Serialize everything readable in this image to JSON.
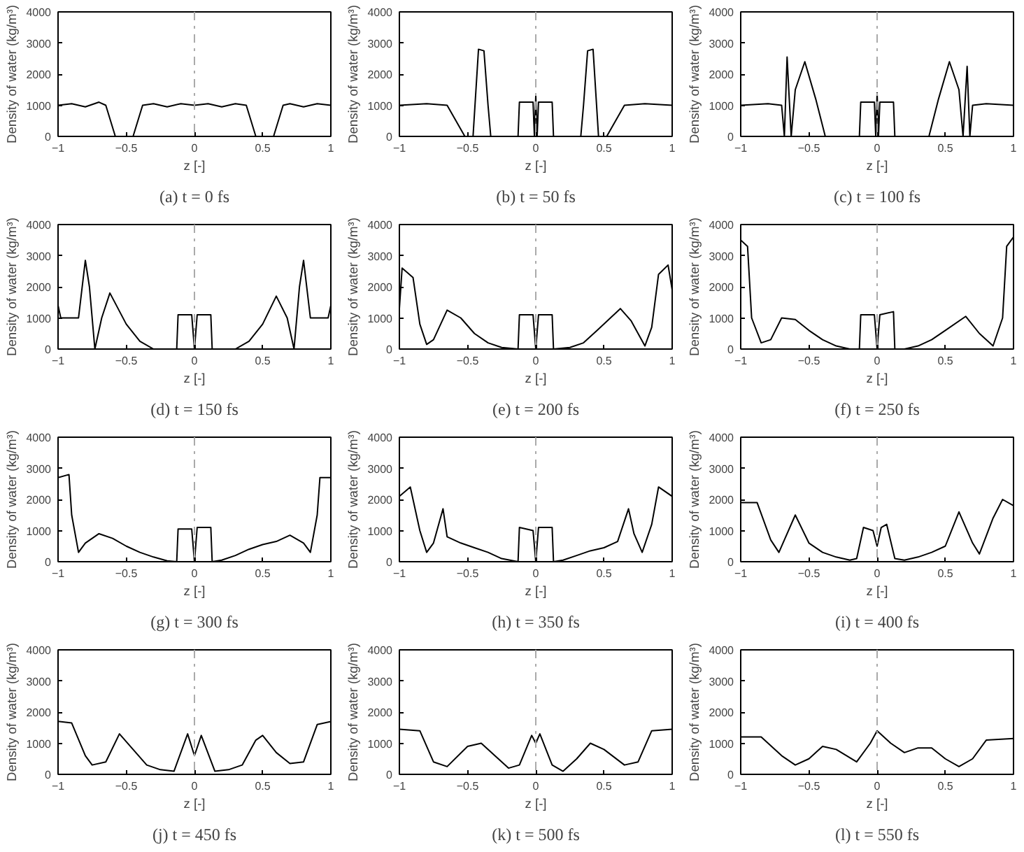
{
  "chart_data": [
    {
      "type": "line",
      "title": "(a) t = 0 fs",
      "xlabel": "z [-]",
      "ylabel": "Density of water (kg/m³)",
      "xlim": [
        -1,
        1
      ],
      "ylim": [
        0,
        4000
      ],
      "xticks": [
        -1,
        -0.5,
        0,
        0.5,
        1
      ],
      "yticks": [
        0,
        1000,
        2000,
        3000,
        4000
      ],
      "grid": false,
      "marker": "none",
      "ref_lines": [
        {
          "axis": "x",
          "value": 0,
          "color": "#aaaaaa"
        }
      ],
      "series": [
        {
          "color": "#000000",
          "x": [
            -1,
            -0.9,
            -0.8,
            -0.7,
            -0.65,
            -0.58,
            -0.5,
            -0.45,
            -0.38,
            -0.3,
            -0.2,
            -0.1,
            0,
            0.1,
            0.2,
            0.3,
            0.38,
            0.45,
            0.5,
            0.58,
            0.65,
            0.7,
            0.8,
            0.9,
            1
          ],
          "values": [
            1000,
            1050,
            950,
            1100,
            1000,
            0,
            0,
            0,
            1000,
            1050,
            950,
            1050,
            1000,
            1050,
            950,
            1050,
            1000,
            0,
            0,
            0,
            1000,
            1050,
            950,
            1050,
            1000
          ]
        }
      ]
    },
    {
      "type": "line",
      "title": "(b) t = 50 fs",
      "xlabel": "z [-]",
      "ylabel": "Density of water (kg/m³)",
      "xlim": [
        -1,
        1
      ],
      "ylim": [
        0,
        4000
      ],
      "xticks": [
        -1,
        -0.5,
        0,
        0.5,
        1
      ],
      "yticks": [
        0,
        1000,
        2000,
        3000,
        4000
      ],
      "grid": false,
      "marker": "none",
      "ref_lines": [
        {
          "axis": "x",
          "value": 0,
          "color": "#aaaaaa"
        }
      ],
      "series": [
        {
          "color": "#000000",
          "x": [
            -1,
            -0.8,
            -0.65,
            -0.52,
            -0.46,
            -0.42,
            -0.38,
            -0.35,
            -0.33,
            -0.13,
            -0.12,
            -0.02,
            -0.01,
            0,
            0.01,
            0.02,
            0.12,
            0.13,
            0.33,
            0.35,
            0.38,
            0.42,
            0.46,
            0.52,
            0.65,
            0.8,
            1
          ],
          "values": [
            1000,
            1050,
            1000,
            0,
            0,
            2800,
            2750,
            1000,
            0,
            0,
            1100,
            1100,
            0,
            1300,
            0,
            1100,
            1100,
            0,
            0,
            1000,
            2750,
            2800,
            0,
            0,
            1000,
            1050,
            1000
          ]
        }
      ]
    },
    {
      "type": "line",
      "title": "(c) t = 100 fs",
      "xlabel": "z [-]",
      "ylabel": "Density of water (kg/m³)",
      "xlim": [
        -1,
        1
      ],
      "ylim": [
        0,
        4000
      ],
      "xticks": [
        -1,
        -0.5,
        0,
        0.5,
        1
      ],
      "yticks": [
        0,
        1000,
        2000,
        3000,
        4000
      ],
      "grid": false,
      "marker": "none",
      "ref_lines": [
        {
          "axis": "x",
          "value": 0,
          "color": "#aaaaaa"
        }
      ],
      "series": [
        {
          "color": "#000000",
          "x": [
            -1,
            -0.8,
            -0.7,
            -0.68,
            -0.66,
            -0.63,
            -0.6,
            -0.53,
            -0.45,
            -0.38,
            -0.13,
            -0.12,
            -0.02,
            -0.01,
            0,
            0.01,
            0.02,
            0.12,
            0.13,
            0.38,
            0.45,
            0.53,
            0.6,
            0.63,
            0.66,
            0.68,
            0.7,
            0.8,
            1
          ],
          "values": [
            1000,
            1050,
            1000,
            0,
            2550,
            0,
            1500,
            2400,
            1200,
            0,
            0,
            1100,
            1100,
            0,
            1400,
            0,
            1100,
            1100,
            0,
            0,
            1200,
            2400,
            1500,
            0,
            2250,
            0,
            1000,
            1050,
            1000
          ]
        }
      ]
    },
    {
      "type": "line",
      "title": "(d) t = 150 fs",
      "xlabel": "z [-]",
      "ylabel": "Density of water (kg/m³)",
      "xlim": [
        -1,
        1
      ],
      "ylim": [
        0,
        4000
      ],
      "xticks": [
        -1,
        -0.5,
        0,
        0.5,
        1
      ],
      "yticks": [
        0,
        1000,
        2000,
        3000,
        4000
      ],
      "grid": false,
      "marker": "none",
      "ref_lines": [
        {
          "axis": "x",
          "value": 0,
          "color": "#aaaaaa"
        }
      ],
      "series": [
        {
          "color": "#000000",
          "x": [
            -1,
            -0.98,
            -0.85,
            -0.8,
            -0.77,
            -0.73,
            -0.68,
            -0.62,
            -0.5,
            -0.4,
            -0.3,
            -0.13,
            -0.12,
            -0.02,
            0,
            0.02,
            0.12,
            0.13,
            0.3,
            0.4,
            0.5,
            0.6,
            0.68,
            0.73,
            0.77,
            0.8,
            0.85,
            0.98,
            1
          ],
          "values": [
            1400,
            1000,
            1000,
            2850,
            2000,
            0,
            1000,
            1800,
            800,
            250,
            0,
            0,
            1100,
            1100,
            0,
            1100,
            1100,
            0,
            0,
            250,
            800,
            1700,
            1000,
            0,
            2000,
            2850,
            1000,
            1000,
            1400
          ]
        }
      ]
    },
    {
      "type": "line",
      "title": "(e) t = 200 fs",
      "xlabel": "z [-]",
      "ylabel": "Density of water (kg/m³)",
      "xlim": [
        -1,
        1
      ],
      "ylim": [
        0,
        4000
      ],
      "xticks": [
        -1,
        -0.5,
        0,
        0.5,
        1
      ],
      "yticks": [
        0,
        1000,
        2000,
        3000,
        4000
      ],
      "grid": false,
      "marker": "none",
      "ref_lines": [
        {
          "axis": "x",
          "value": 0,
          "color": "#aaaaaa"
        }
      ],
      "series": [
        {
          "color": "#000000",
          "x": [
            -1,
            -0.98,
            -0.9,
            -0.85,
            -0.8,
            -0.75,
            -0.65,
            -0.55,
            -0.45,
            -0.35,
            -0.25,
            -0.13,
            -0.12,
            -0.02,
            0,
            0.02,
            0.12,
            0.13,
            0.25,
            0.35,
            0.45,
            0.62,
            0.7,
            0.8,
            0.85,
            0.9,
            0.97,
            1
          ],
          "values": [
            1300,
            2600,
            2300,
            800,
            150,
            300,
            1250,
            1000,
            500,
            200,
            50,
            0,
            1100,
            1100,
            0,
            1100,
            1100,
            0,
            50,
            200,
            600,
            1300,
            900,
            100,
            700,
            2400,
            2700,
            1900
          ]
        }
      ]
    },
    {
      "type": "line",
      "title": "(f) t = 250 fs",
      "xlabel": "z [-]",
      "ylabel": "Density of water (kg/m³)",
      "xlim": [
        -1,
        1
      ],
      "ylim": [
        0,
        4000
      ],
      "xticks": [
        -1,
        -0.5,
        0,
        0.5,
        1
      ],
      "yticks": [
        0,
        1000,
        2000,
        3000,
        4000
      ],
      "grid": false,
      "marker": "none",
      "ref_lines": [
        {
          "axis": "x",
          "value": 0,
          "color": "#aaaaaa"
        }
      ],
      "series": [
        {
          "color": "#000000",
          "x": [
            -1,
            -0.95,
            -0.92,
            -0.85,
            -0.78,
            -0.7,
            -0.6,
            -0.5,
            -0.4,
            -0.3,
            -0.2,
            -0.13,
            -0.12,
            -0.02,
            0,
            0.02,
            0.12,
            0.13,
            0.2,
            0.3,
            0.4,
            0.5,
            0.65,
            0.75,
            0.85,
            0.92,
            0.95,
            1
          ],
          "values": [
            3500,
            3300,
            1000,
            200,
            300,
            1000,
            950,
            600,
            300,
            100,
            0,
            0,
            1100,
            1100,
            0,
            1100,
            1200,
            0,
            0,
            100,
            300,
            600,
            1050,
            500,
            100,
            1000,
            3300,
            3600
          ]
        }
      ]
    },
    {
      "type": "line",
      "title": "(g) t = 300 fs",
      "xlabel": "z [-]",
      "ylabel": "Density of water (kg/m³)",
      "xlim": [
        -1,
        1
      ],
      "ylim": [
        0,
        4000
      ],
      "xticks": [
        -1,
        -0.5,
        0,
        0.5,
        1
      ],
      "yticks": [
        0,
        1000,
        2000,
        3000,
        4000
      ],
      "grid": false,
      "marker": "none",
      "ref_lines": [
        {
          "axis": "x",
          "value": 0,
          "color": "#aaaaaa"
        }
      ],
      "series": [
        {
          "color": "#000000",
          "x": [
            -1,
            -0.92,
            -0.9,
            -0.85,
            -0.8,
            -0.7,
            -0.6,
            -0.5,
            -0.4,
            -0.3,
            -0.2,
            -0.13,
            -0.12,
            -0.02,
            0,
            0.02,
            0.12,
            0.13,
            0.2,
            0.3,
            0.4,
            0.5,
            0.6,
            0.7,
            0.8,
            0.85,
            0.9,
            0.92,
            1
          ],
          "values": [
            2700,
            2800,
            1500,
            300,
            600,
            900,
            750,
            500,
            300,
            150,
            30,
            0,
            1050,
            1050,
            0,
            1100,
            1100,
            0,
            50,
            200,
            400,
            550,
            650,
            850,
            600,
            300,
            1500,
            2700,
            2700
          ]
        }
      ]
    },
    {
      "type": "line",
      "title": "(h) t = 350 fs",
      "xlabel": "z [-]",
      "ylabel": "Density of water (kg/m³)",
      "xlim": [
        -1,
        1
      ],
      "ylim": [
        0,
        4000
      ],
      "xticks": [
        -1,
        -0.5,
        0,
        0.5,
        1
      ],
      "yticks": [
        0,
        1000,
        2000,
        3000,
        4000
      ],
      "grid": false,
      "marker": "none",
      "ref_lines": [
        {
          "axis": "x",
          "value": 0,
          "color": "#aaaaaa"
        }
      ],
      "series": [
        {
          "color": "#000000",
          "x": [
            -1,
            -0.92,
            -0.85,
            -0.8,
            -0.75,
            -0.68,
            -0.65,
            -0.55,
            -0.45,
            -0.35,
            -0.25,
            -0.13,
            -0.12,
            -0.02,
            0,
            0.02,
            0.12,
            0.13,
            0.2,
            0.3,
            0.4,
            0.5,
            0.6,
            0.68,
            0.72,
            0.78,
            0.85,
            0.9,
            1
          ],
          "values": [
            2100,
            2400,
            1000,
            300,
            600,
            1700,
            800,
            600,
            450,
            300,
            100,
            0,
            1100,
            1000,
            0,
            1100,
            1100,
            0,
            50,
            200,
            350,
            450,
            650,
            1700,
            900,
            300,
            1200,
            2400,
            2100
          ]
        }
      ]
    },
    {
      "type": "line",
      "title": "(i) t = 400 fs",
      "xlabel": "z [-]",
      "ylabel": "Density of water (kg/m³)",
      "xlim": [
        -1,
        1
      ],
      "ylim": [
        0,
        4000
      ],
      "xticks": [
        -1,
        -0.5,
        0,
        0.5,
        1
      ],
      "yticks": [
        0,
        1000,
        2000,
        3000,
        4000
      ],
      "grid": false,
      "marker": "none",
      "ref_lines": [
        {
          "axis": "x",
          "value": 0,
          "color": "#aaaaaa"
        }
      ],
      "series": [
        {
          "color": "#000000",
          "x": [
            -1,
            -0.88,
            -0.78,
            -0.72,
            -0.6,
            -0.5,
            -0.4,
            -0.3,
            -0.2,
            -0.15,
            -0.1,
            -0.03,
            0,
            0.03,
            0.07,
            0.13,
            0.2,
            0.3,
            0.4,
            0.5,
            0.6,
            0.7,
            0.75,
            0.85,
            0.92,
            1
          ],
          "values": [
            1900,
            1900,
            700,
            300,
            1500,
            600,
            300,
            150,
            50,
            100,
            1100,
            1000,
            500,
            1100,
            1200,
            100,
            50,
            150,
            300,
            500,
            1600,
            600,
            250,
            1400,
            2000,
            1800
          ]
        }
      ]
    },
    {
      "type": "line",
      "title": "(j) t = 450 fs",
      "xlabel": "z [-]",
      "ylabel": "Density of water (kg/m³)",
      "xlim": [
        -1,
        1
      ],
      "ylim": [
        0,
        4000
      ],
      "xticks": [
        -1,
        -0.5,
        0,
        0.5,
        1
      ],
      "yticks": [
        0,
        1000,
        2000,
        3000,
        4000
      ],
      "grid": false,
      "marker": "none",
      "ref_lines": [
        {
          "axis": "x",
          "value": 0,
          "color": "#aaaaaa"
        }
      ],
      "series": [
        {
          "color": "#000000",
          "x": [
            -1,
            -0.9,
            -0.8,
            -0.75,
            -0.65,
            -0.55,
            -0.45,
            -0.35,
            -0.25,
            -0.15,
            -0.05,
            0,
            0.05,
            0.15,
            0.25,
            0.35,
            0.45,
            0.5,
            0.6,
            0.7,
            0.8,
            0.9,
            1
          ],
          "values": [
            1700,
            1650,
            600,
            300,
            400,
            1300,
            800,
            300,
            150,
            100,
            1300,
            600,
            1250,
            100,
            150,
            300,
            1100,
            1250,
            700,
            350,
            400,
            1600,
            1700
          ]
        }
      ]
    },
    {
      "type": "line",
      "title": "(k) t = 500 fs",
      "xlabel": "z [-]",
      "ylabel": "Density of water (kg/m³)",
      "xlim": [
        -1,
        1
      ],
      "ylim": [
        0,
        4000
      ],
      "xticks": [
        -1,
        -0.5,
        0,
        0.5,
        1
      ],
      "yticks": [
        0,
        1000,
        2000,
        3000,
        4000
      ],
      "grid": false,
      "marker": "none",
      "ref_lines": [
        {
          "axis": "x",
          "value": 0,
          "color": "#aaaaaa"
        }
      ],
      "series": [
        {
          "color": "#000000",
          "x": [
            -1,
            -0.85,
            -0.75,
            -0.65,
            -0.5,
            -0.4,
            -0.3,
            -0.2,
            -0.12,
            -0.03,
            0,
            0.03,
            0.12,
            0.2,
            0.3,
            0.4,
            0.5,
            0.65,
            0.75,
            0.85,
            1
          ],
          "values": [
            1450,
            1400,
            400,
            250,
            900,
            1000,
            600,
            200,
            300,
            1250,
            1000,
            1300,
            300,
            100,
            500,
            1000,
            800,
            300,
            400,
            1400,
            1450
          ]
        }
      ]
    },
    {
      "type": "line",
      "title": "(l) t = 550 fs",
      "xlabel": "z [-]",
      "ylabel": "Density of water (kg/m³)",
      "xlim": [
        -1,
        1
      ],
      "ylim": [
        0,
        4000
      ],
      "xticks": [
        -1,
        -0.5,
        0,
        0.5,
        1
      ],
      "yticks": [
        0,
        1000,
        2000,
        3000,
        4000
      ],
      "grid": false,
      "marker": "none",
      "ref_lines": [
        {
          "axis": "x",
          "value": 0,
          "color": "#aaaaaa"
        }
      ],
      "series": [
        {
          "color": "#000000",
          "x": [
            -1,
            -0.85,
            -0.7,
            -0.6,
            -0.5,
            -0.4,
            -0.3,
            -0.15,
            -0.05,
            0,
            0.1,
            0.2,
            0.3,
            0.4,
            0.5,
            0.6,
            0.7,
            0.8,
            1
          ],
          "values": [
            1200,
            1200,
            600,
            300,
            500,
            900,
            800,
            400,
            1000,
            1400,
            1000,
            700,
            850,
            850,
            500,
            250,
            500,
            1100,
            1150
          ]
        }
      ]
    }
  ]
}
